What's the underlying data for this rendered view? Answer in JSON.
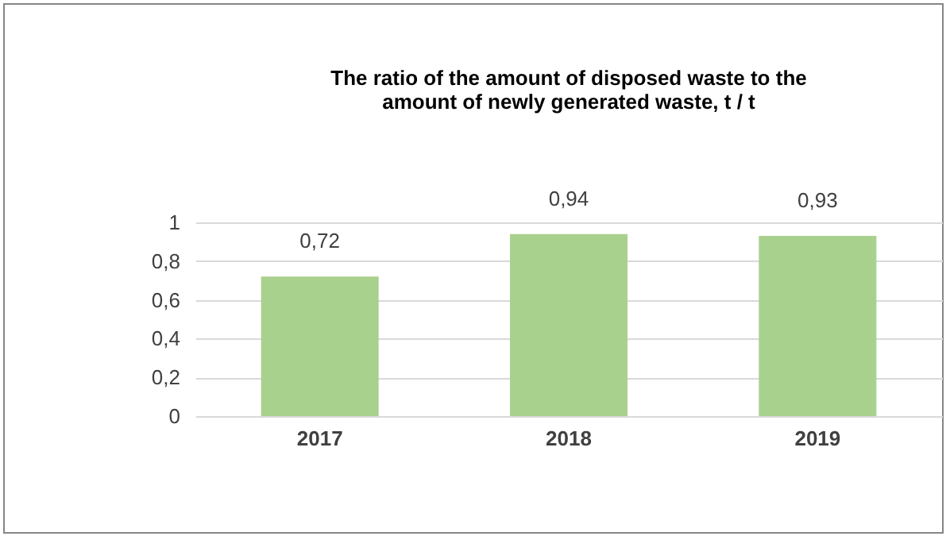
{
  "chart_data": {
    "type": "bar",
    "title": "The ratio of the amount of disposed waste to the amount of newly generated waste, t / t",
    "categories": [
      "2017",
      "2018",
      "2019"
    ],
    "values": [
      0.72,
      0.94,
      0.93
    ],
    "value_labels": [
      "0,72",
      "0,94",
      "0,93"
    ],
    "color": "#a9d18e",
    "ylim": [
      0,
      1
    ],
    "yticks": [
      0,
      {
        "value": 0.2,
        "label": "0,2"
      },
      {
        "value": 0.4,
        "label": "0,4"
      },
      {
        "value": 0.6,
        "label": "0,6"
      },
      {
        "value": 0.8,
        "label": "0,8"
      },
      1
    ],
    "grid": "y"
  }
}
